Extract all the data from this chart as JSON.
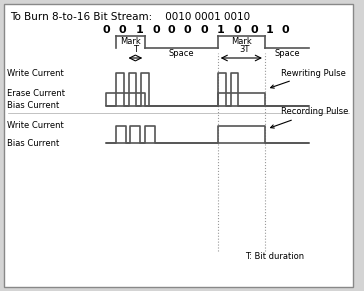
{
  "title": "To Burn 8-to-16 Bit Stream:    0010 0001 0010",
  "bits": [
    "0",
    "0",
    "1",
    "0",
    "0",
    "0",
    "0",
    "1",
    "0",
    "0",
    "1",
    "0"
  ],
  "bg_color": "#d4d4d4",
  "inner_bg": "#ffffff",
  "border_color": "#888888",
  "signal_color": "#555555",
  "text_color": "#000000",
  "font_size": 6.5,
  "bit_font_size": 8,
  "title_font_size": 7.5
}
